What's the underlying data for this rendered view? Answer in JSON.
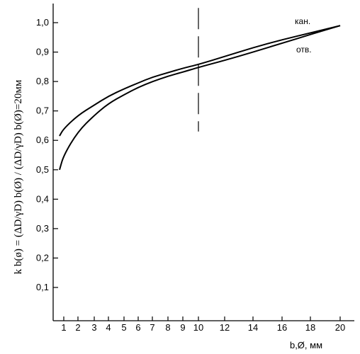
{
  "chart_data": {
    "type": "line",
    "xlabel": "b,Ø,  мм",
    "ylabel": "k b(ø) = (ΔD/γD) b(Ø) / (ΔD/γD) b(Ø)=20мм",
    "xlim": [
      0.5,
      21.5
    ],
    "ylim": [
      0,
      1.05
    ],
    "xticks": [
      "1",
      "2",
      "3",
      "4",
      "5",
      "6",
      "7",
      "8",
      "9",
      "10",
      "12",
      "14",
      "16",
      "18",
      "20"
    ],
    "xtick_values": [
      1,
      2,
      3,
      4,
      5,
      6,
      7,
      8,
      9,
      10,
      12,
      14,
      16,
      18,
      20
    ],
    "yticks": [
      "0,1",
      "0,2",
      "0,3",
      "0,4",
      "0,5",
      "0,6",
      "0,7",
      "0,8",
      "0,9",
      "1,0"
    ],
    "ytick_values": [
      0.1,
      0.2,
      0.3,
      0.4,
      0.5,
      0.6,
      0.7,
      0.8,
      0.9,
      1.0
    ],
    "grid": false,
    "vline": {
      "x": 10,
      "style": "dashed",
      "y_range": [
        0.63,
        1.05
      ]
    },
    "series": [
      {
        "name": "кан.",
        "x": [
          0.7,
          1,
          2,
          3,
          4,
          5,
          6,
          7,
          8,
          9,
          10,
          12,
          14,
          16,
          18,
          20
        ],
        "values": [
          0.615,
          0.64,
          0.685,
          0.72,
          0.75,
          0.775,
          0.795,
          0.815,
          0.83,
          0.845,
          0.858,
          0.885,
          0.915,
          0.942,
          0.965,
          0.99
        ]
      },
      {
        "name": "отв.",
        "x": [
          0.7,
          1,
          2,
          3,
          4,
          5,
          6,
          7,
          8,
          9,
          10,
          12,
          14,
          16,
          18,
          20
        ],
        "values": [
          0.5,
          0.55,
          0.63,
          0.685,
          0.725,
          0.755,
          0.78,
          0.8,
          0.818,
          0.832,
          0.848,
          0.872,
          0.9,
          0.93,
          0.96,
          0.99
        ]
      }
    ]
  }
}
